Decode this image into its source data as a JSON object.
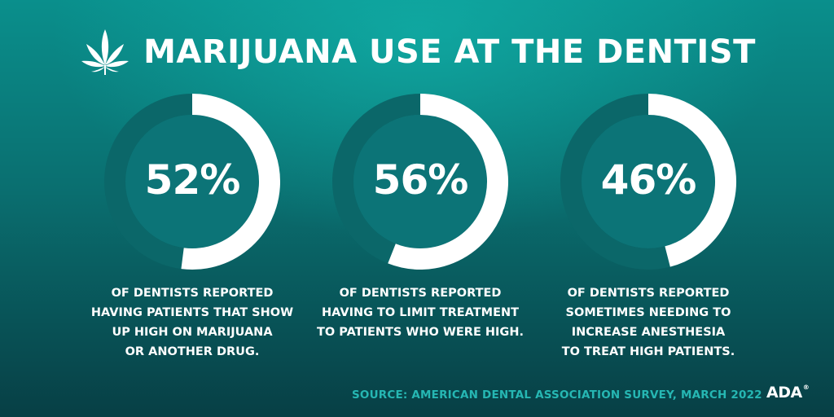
{
  "header": {
    "title": "MARIJUANA USE AT THE DENTIST",
    "icon": "cannabis-leaf-icon"
  },
  "chart_data": {
    "type": "donut",
    "series": [
      {
        "value": 52,
        "label": "52%",
        "description": [
          "OF DENTISTS REPORTED",
          "HAVING PATIENTS THAT SHOW",
          "UP HIGH ON MARIJUANA",
          "OR ANOTHER DRUG."
        ]
      },
      {
        "value": 56,
        "label": "56%",
        "description": [
          "OF DENTISTS REPORTED",
          "HAVING TO LIMIT TREATMENT",
          "TO PATIENTS WHO WERE HIGH."
        ]
      },
      {
        "value": 46,
        "label": "46%",
        "description": [
          "OF DENTISTS REPORTED",
          "SOMETIMES NEEDING TO",
          "INCREASE ANESTHESIA",
          "TO TREAT HIGH PATIENTS."
        ]
      }
    ],
    "max": 100
  },
  "footer": {
    "source": "SOURCE: AMERICAN DENTAL ASSOCIATION SURVEY, MARCH 2022",
    "brand": "ADA",
    "brand_mark": "®"
  },
  "colors": {
    "background_top": "#0a8f8c",
    "background_bottom": "#073f45",
    "ring_fill": "#ffffff",
    "ring_track": "#0b6769",
    "source_text": "#26b7b3"
  }
}
